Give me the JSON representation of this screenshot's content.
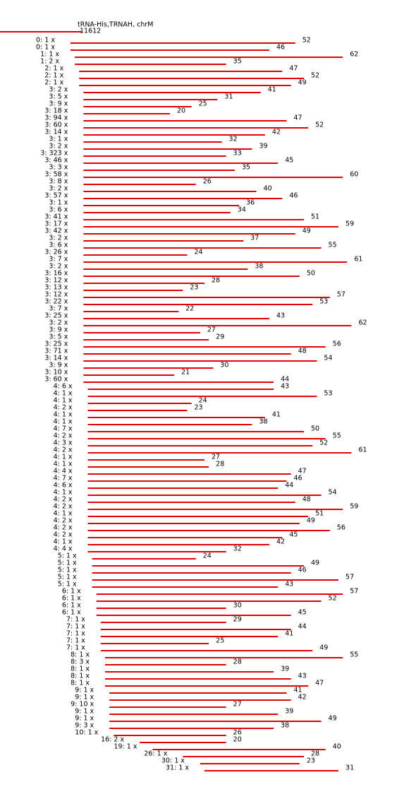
{
  "header": {
    "title": "tRNA-His,TRNAH, chrM",
    "position": "11612"
  },
  "reads": [
    {
      "label": "0: 1 x",
      "length": 52
    },
    {
      "label": "0: 1 x",
      "length": 46
    },
    {
      "label": "1: 1 x",
      "length": 62
    },
    {
      "label": "1: 2 x",
      "length": 35
    },
    {
      "label": "2: 1 x",
      "length": 47
    },
    {
      "label": "2: 1 x",
      "length": 52
    },
    {
      "label": "2: 1 x",
      "length": 49
    },
    {
      "label": "3: 2 x",
      "length": 41
    },
    {
      "label": "3: 5 x",
      "length": 31
    },
    {
      "label": "3: 9 x",
      "length": 25
    },
    {
      "label": "3: 18 x",
      "length": 20
    },
    {
      "label": "3: 94 x",
      "length": 47
    },
    {
      "label": "3: 60 x",
      "length": 52
    },
    {
      "label": "3: 14 x",
      "length": 42
    },
    {
      "label": "3: 1 x",
      "length": 32
    },
    {
      "label": "3: 2 x",
      "length": 39
    },
    {
      "label": "3: 323 x",
      "length": 33
    },
    {
      "label": "3: 46 x",
      "length": 45
    },
    {
      "label": "3: 3 x",
      "length": 35
    },
    {
      "label": "3: 58 x",
      "length": 60
    },
    {
      "label": "3: 8 x",
      "length": 26
    },
    {
      "label": "3: 2 x",
      "length": 40
    },
    {
      "label": "3: 57 x",
      "length": 46
    },
    {
      "label": "3: 1 x",
      "length": 36
    },
    {
      "label": "3: 6 x",
      "length": 34
    },
    {
      "label": "3: 41 x",
      "length": 51
    },
    {
      "label": "3: 17 x",
      "length": 59
    },
    {
      "label": "3: 42 x",
      "length": 49
    },
    {
      "label": "3: 2 x",
      "length": 37
    },
    {
      "label": "3: 6 x",
      "length": 55
    },
    {
      "label": "3: 26 x",
      "length": 24
    },
    {
      "label": "3: 7 x",
      "length": 61
    },
    {
      "label": "3: 2 x",
      "length": 38
    },
    {
      "label": "3: 16 x",
      "length": 50
    },
    {
      "label": "3: 12 x",
      "length": 28
    },
    {
      "label": "3: 13 x",
      "length": 23
    },
    {
      "label": "3: 12 x",
      "length": 57
    },
    {
      "label": "3: 22 x",
      "length": 53
    },
    {
      "label": "3: 7 x",
      "length": 22
    },
    {
      "label": "3: 25 x",
      "length": 43
    },
    {
      "label": "3: 2 x",
      "length": 62
    },
    {
      "label": "3: 9 x",
      "length": 27
    },
    {
      "label": "3: 5 x",
      "length": 29
    },
    {
      "label": "3: 25 x",
      "length": 56
    },
    {
      "label": "3: 71 x",
      "length": 48
    },
    {
      "label": "3: 14 x",
      "length": 54
    },
    {
      "label": "3: 9 x",
      "length": 30
    },
    {
      "label": "3: 10 x",
      "length": 21
    },
    {
      "label": "3: 60 x",
      "length": 44
    },
    {
      "label": "4: 6 x",
      "length": 43
    },
    {
      "label": "4: 1 x",
      "length": 53
    },
    {
      "label": "4: 1 x",
      "length": 24
    },
    {
      "label": "4: 2 x",
      "length": 23
    },
    {
      "label": "4: 1 x",
      "length": 41
    },
    {
      "label": "4: 1 x",
      "length": 38
    },
    {
      "label": "4: 7 x",
      "length": 50
    },
    {
      "label": "4: 2 x",
      "length": 55
    },
    {
      "label": "4: 3 x",
      "length": 52
    },
    {
      "label": "4: 2 x",
      "length": 61
    },
    {
      "label": "4: 1 x",
      "length": 27
    },
    {
      "label": "4: 1 x",
      "length": 28
    },
    {
      "label": "4: 4 x",
      "length": 47
    },
    {
      "label": "4: 7 x",
      "length": 46
    },
    {
      "label": "4: 6 x",
      "length": 44
    },
    {
      "label": "4: 1 x",
      "length": 54
    },
    {
      "label": "4: 2 x",
      "length": 48
    },
    {
      "label": "4: 2 x",
      "length": 59
    },
    {
      "label": "4: 1 x",
      "length": 51
    },
    {
      "label": "4: 2 x",
      "length": 49
    },
    {
      "label": "4: 2 x",
      "length": 56
    },
    {
      "label": "4: 2 x",
      "length": 45
    },
    {
      "label": "4: 1 x",
      "length": 42
    },
    {
      "label": "4: 4 x",
      "length": 32
    },
    {
      "label": "5: 1 x",
      "length": 24
    },
    {
      "label": "5: 1 x",
      "length": 49
    },
    {
      "label": "5: 1 x",
      "length": 46
    },
    {
      "label": "5: 1 x",
      "length": 57
    },
    {
      "label": "5: 1 x",
      "length": 43
    },
    {
      "label": "6: 1 x",
      "length": 57
    },
    {
      "label": "6: 1 x",
      "length": 52
    },
    {
      "label": "6: 1 x",
      "length": 30
    },
    {
      "label": "6: 1 x",
      "length": 45
    },
    {
      "label": "7: 1 x",
      "length": 29
    },
    {
      "label": "7: 1 x",
      "length": 44
    },
    {
      "label": "7: 1 x",
      "length": 41
    },
    {
      "label": "7: 1 x",
      "length": 25
    },
    {
      "label": "7: 1 x",
      "length": 49
    },
    {
      "label": "8: 1 x",
      "length": 55
    },
    {
      "label": "8: 3 x",
      "length": 28
    },
    {
      "label": "8: 1 x",
      "length": 39
    },
    {
      "label": "8: 1 x",
      "length": 43
    },
    {
      "label": "8: 1 x",
      "length": 47
    },
    {
      "label": "9: 1 x",
      "length": 41
    },
    {
      "label": "9: 1 x",
      "length": 42
    },
    {
      "label": "9: 10 x",
      "length": 27
    },
    {
      "label": "9: 1 x",
      "length": 39
    },
    {
      "label": "9: 1 x",
      "length": 49
    },
    {
      "label": "9: 3 x",
      "length": 38
    },
    {
      "label": "10: 1 x",
      "length": 26
    },
    {
      "label": "16: 2 x",
      "length": 20
    },
    {
      "label": "19: 1 x",
      "length": 40
    },
    {
      "label": "26: 1 x",
      "length": 28
    },
    {
      "label": "30: 1 x",
      "length": 23
    },
    {
      "label": "31: 1 x",
      "length": 31
    }
  ]
}
